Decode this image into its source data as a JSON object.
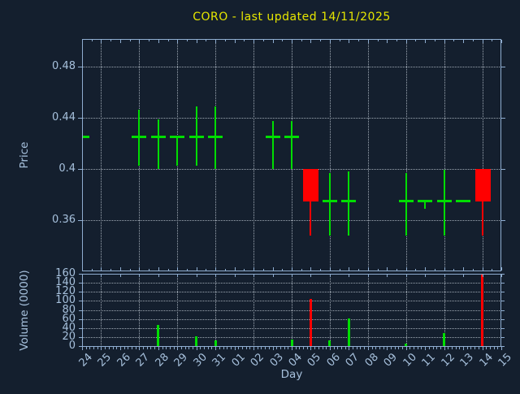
{
  "title": {
    "text": "CORO - last updated 14/11/2025"
  },
  "colors": {
    "background": "#141f2e",
    "title": "#e6e600",
    "axis_text": "#a6c0dc",
    "frame": "#8fadd0",
    "grid": "#9fa9b4",
    "up": "#00dd00",
    "down": "#ff0000"
  },
  "chart_data": {
    "type": "candlestick-with-volume",
    "title": "CORO - last updated 14/11/2025",
    "xlabel": "Day",
    "x_labels": [
      "24",
      "25",
      "26",
      "27",
      "28",
      "29",
      "30",
      "31",
      "01",
      "02",
      "03",
      "04",
      "05",
      "06",
      "07",
      "08",
      "09",
      "10",
      "11",
      "12",
      "13",
      "14",
      "15"
    ],
    "grid_x_indices": [
      1,
      3,
      5,
      7,
      9,
      11,
      13,
      15,
      17,
      19,
      21
    ],
    "price": {
      "axis_label": "Price",
      "ticks": [
        0.48,
        0.44,
        0.4,
        0.36
      ],
      "range": [
        0.32,
        0.502
      ],
      "grid": "dotted"
    },
    "volume": {
      "axis_label": "Volume (0000)",
      "ticks": [
        160,
        140,
        120,
        100,
        80,
        60,
        40,
        20,
        0
      ],
      "range": [
        0,
        160
      ],
      "grid": "dotted"
    },
    "candles": [
      {
        "day": "24",
        "i": 0,
        "open": 0.425,
        "high": 0.425,
        "low": 0.425,
        "close": 0.425,
        "dir": "up",
        "volume": 0
      },
      {
        "day": "27",
        "i": 3,
        "open": 0.425,
        "high": 0.4465,
        "low": 0.4025,
        "close": 0.425,
        "dir": "up",
        "volume": 0
      },
      {
        "day": "28",
        "i": 4,
        "open": 0.425,
        "high": 0.4385,
        "low": 0.4,
        "close": 0.425,
        "dir": "up",
        "volume": 47
      },
      {
        "day": "29",
        "i": 5,
        "open": 0.425,
        "high": 0.425,
        "low": 0.4025,
        "close": 0.425,
        "dir": "up",
        "volume": 0
      },
      {
        "day": "30",
        "i": 6,
        "open": 0.425,
        "high": 0.449,
        "low": 0.4025,
        "close": 0.425,
        "dir": "up",
        "volume": 22
      },
      {
        "day": "31",
        "i": 7,
        "open": 0.425,
        "high": 0.449,
        "low": 0.4,
        "close": 0.425,
        "dir": "up",
        "volume": 12
      },
      {
        "day": "03",
        "i": 10,
        "open": 0.425,
        "high": 0.4375,
        "low": 0.4,
        "close": 0.425,
        "dir": "up",
        "volume": 0
      },
      {
        "day": "04",
        "i": 11,
        "open": 0.425,
        "high": 0.4375,
        "low": 0.4,
        "close": 0.425,
        "dir": "up",
        "volume": 14
      },
      {
        "day": "05",
        "i": 12,
        "open": 0.4,
        "high": 0.4,
        "low": 0.348,
        "close": 0.3745,
        "dir": "down",
        "volume": 104
      },
      {
        "day": "06",
        "i": 13,
        "open": 0.3745,
        "high": 0.3965,
        "low": 0.348,
        "close": 0.3745,
        "dir": "up",
        "volume": 12
      },
      {
        "day": "07",
        "i": 14,
        "open": 0.3745,
        "high": 0.398,
        "low": 0.348,
        "close": 0.3745,
        "dir": "up",
        "volume": 62
      },
      {
        "day": "10",
        "i": 17,
        "open": 0.3745,
        "high": 0.3965,
        "low": 0.348,
        "close": 0.3745,
        "dir": "up",
        "volume": 5
      },
      {
        "day": "11",
        "i": 18,
        "open": 0.3745,
        "high": 0.3745,
        "low": 0.369,
        "close": 0.3745,
        "dir": "up",
        "volume": 0
      },
      {
        "day": "12",
        "i": 19,
        "open": 0.3745,
        "high": 0.3995,
        "low": 0.348,
        "close": 0.3745,
        "dir": "up",
        "volume": 28
      },
      {
        "day": "13",
        "i": 20,
        "open": 0.3745,
        "high": 0.3745,
        "low": 0.3745,
        "close": 0.3745,
        "dir": "up",
        "volume": 0
      },
      {
        "day": "14",
        "i": 21,
        "open": 0.4,
        "high": 0.4,
        "low": 0.348,
        "close": 0.3745,
        "dir": "down",
        "volume": 160
      }
    ]
  }
}
